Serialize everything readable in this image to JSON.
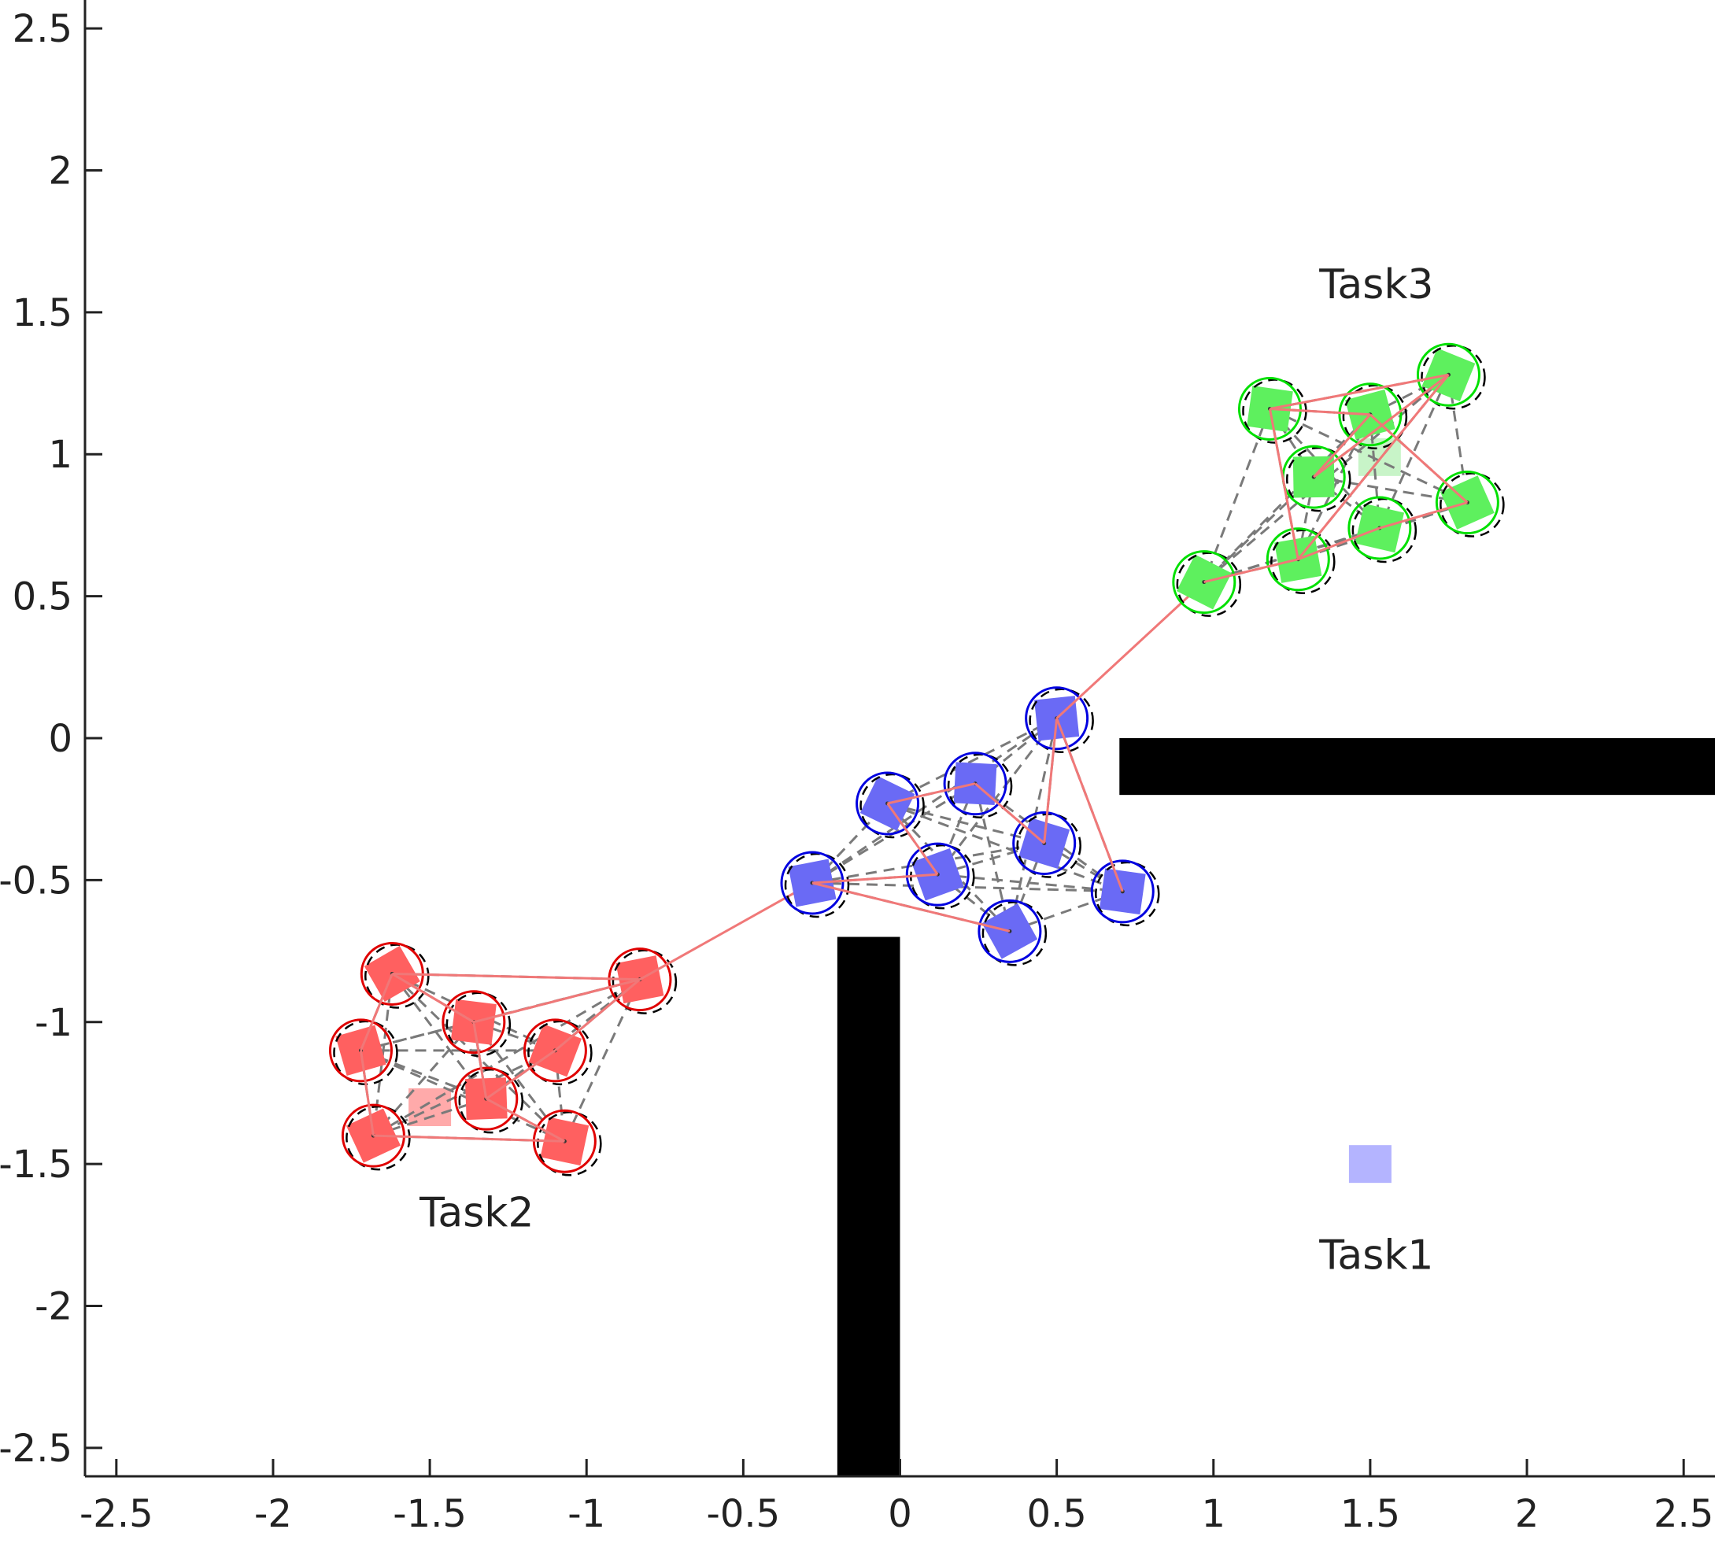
{
  "chart_data": {
    "type": "scatter",
    "title": "",
    "xlabel": "",
    "ylabel": "",
    "xlim": [
      -2.6,
      2.6
    ],
    "ylim": [
      -2.6,
      2.6
    ],
    "grid": false,
    "xticks": [
      -2.5,
      -2,
      -1.5,
      -1,
      -0.5,
      0,
      0.5,
      1,
      1.5,
      2,
      2.5
    ],
    "yticks": [
      -2.5,
      -2,
      -1.5,
      -1,
      -0.5,
      0,
      0.5,
      1,
      1.5,
      2,
      2.5
    ],
    "xtick_labels": [
      "-2.5",
      "-2",
      "-1.5",
      "-1",
      "-0.5",
      "0",
      "0.5",
      "1",
      "1.5",
      "2",
      "2.5"
    ],
    "ytick_labels": [
      "-2.5",
      "-2",
      "-1.5",
      "-1",
      "-0.5",
      "0",
      "0.5",
      "1",
      "1.5",
      "2",
      "2.5"
    ],
    "obstacles": [
      {
        "x": [
          -0.2,
          0.0
        ],
        "y": [
          -2.6,
          -0.7
        ]
      },
      {
        "x": [
          0.7,
          2.6
        ],
        "y": [
          -0.2,
          0.0
        ]
      }
    ],
    "groups": [
      {
        "label": "Task2",
        "label_pos": [
          -1.35,
          -1.72
        ],
        "color": "#ff6060",
        "circle_color": "#e00000",
        "target": [
          -1.5,
          -1.3
        ],
        "target_color": "#ffaaaa",
        "agents": [
          [
            -1.62,
            -0.83
          ],
          [
            -1.36,
            -1.0
          ],
          [
            -1.72,
            -1.1
          ],
          [
            -1.1,
            -1.1
          ],
          [
            -1.32,
            -1.27
          ],
          [
            -1.68,
            -1.4
          ],
          [
            -1.07,
            -1.42
          ],
          [
            -0.83,
            -0.85
          ]
        ],
        "links": [
          [
            0,
            2
          ],
          [
            2,
            5
          ],
          [
            5,
            6
          ],
          [
            6,
            4
          ],
          [
            4,
            1
          ],
          [
            1,
            0
          ],
          [
            1,
            7
          ],
          [
            7,
            3
          ],
          [
            3,
            4
          ],
          [
            0,
            1
          ],
          [
            7,
            0
          ]
        ],
        "bridge": [
          [
            -0.83,
            -0.85
          ],
          [
            -0.28,
            -0.51
          ]
        ]
      },
      {
        "label": "Task1",
        "label_pos": [
          1.52,
          -1.87
        ],
        "color": "#6a6af5",
        "circle_color": "#0000e0",
        "target": [
          1.5,
          -1.5
        ],
        "target_color": "#b4b4ff",
        "agents": [
          [
            -0.28,
            -0.51
          ],
          [
            -0.04,
            -0.23
          ],
          [
            0.24,
            -0.16
          ],
          [
            0.12,
            -0.48
          ],
          [
            0.46,
            -0.37
          ],
          [
            0.5,
            0.07
          ],
          [
            0.35,
            -0.68
          ],
          [
            0.71,
            -0.54
          ]
        ],
        "links": [
          [
            0,
            3
          ],
          [
            3,
            1
          ],
          [
            1,
            2
          ],
          [
            2,
            4
          ],
          [
            4,
            5
          ],
          [
            5,
            7
          ],
          [
            0,
            6
          ]
        ],
        "bridge": [
          [
            0.5,
            0.07
          ],
          [
            0.97,
            0.55
          ]
        ]
      },
      {
        "label": "Task3",
        "label_pos": [
          1.52,
          1.55
        ],
        "color": "#5ef05e",
        "circle_color": "#00e000",
        "target": [
          1.53,
          0.99
        ],
        "target_color": "#c8f4c8",
        "agents": [
          [
            1.18,
            1.16
          ],
          [
            1.5,
            1.14
          ],
          [
            1.75,
            1.28
          ],
          [
            1.32,
            0.92
          ],
          [
            1.81,
            0.83
          ],
          [
            1.53,
            0.74
          ],
          [
            1.27,
            0.63
          ],
          [
            0.97,
            0.55
          ]
        ],
        "links": [
          [
            0,
            1
          ],
          [
            0,
            6
          ],
          [
            6,
            5
          ],
          [
            5,
            4
          ],
          [
            4,
            1
          ],
          [
            1,
            3
          ],
          [
            3,
            2
          ],
          [
            2,
            0
          ],
          [
            7,
            6
          ],
          [
            6,
            2
          ]
        ],
        "bridge": null
      }
    ]
  }
}
